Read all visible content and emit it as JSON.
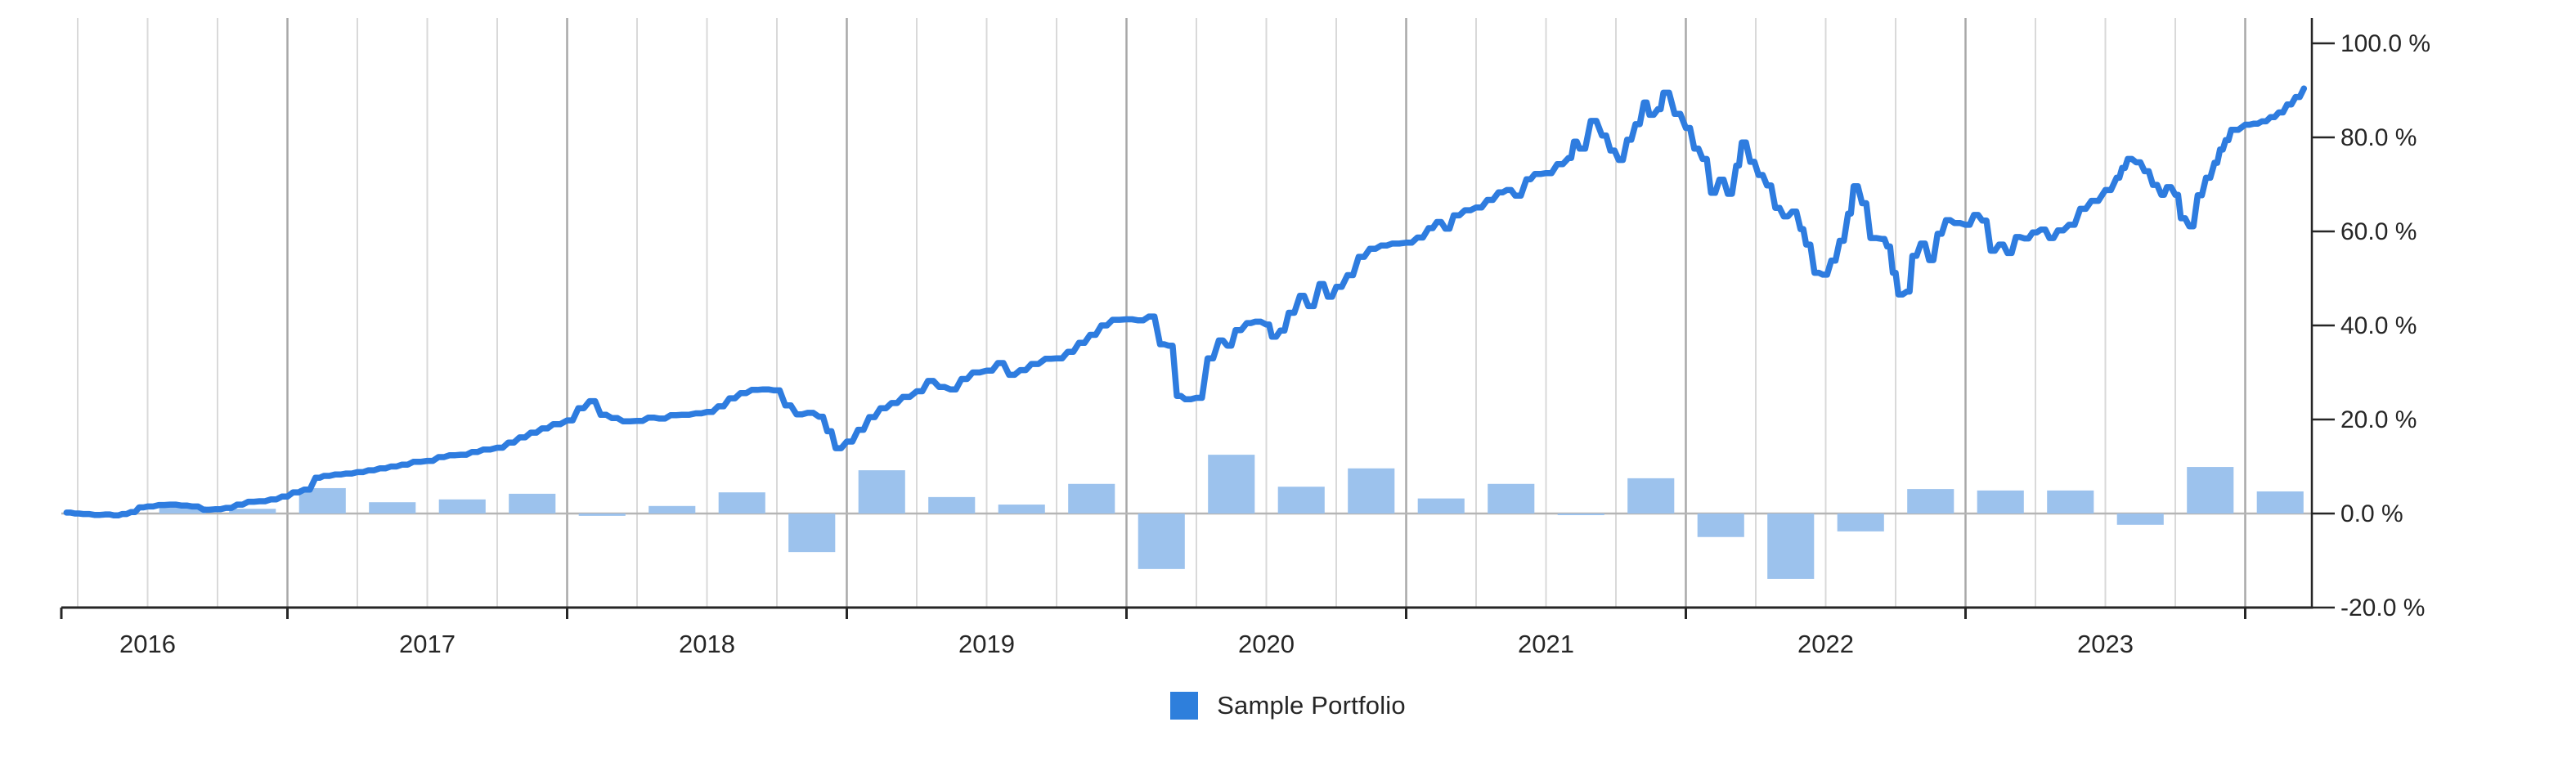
{
  "legend": {
    "label": "Sample Portfolio"
  },
  "colors": {
    "line": "#2e7cdf",
    "bar": "#9cc2ed",
    "legend_swatch": "#2e7fdc",
    "grid_minor": "#d9d9d9",
    "grid_major": "#a8a8a8",
    "zero_line": "#b5b5b5",
    "axis": "#262626",
    "text": "#262626"
  },
  "chart_data": {
    "type": "line+bar",
    "title": "",
    "legend_entries": [
      {
        "label": "Sample Portfolio",
        "color": "#2e7fdc"
      }
    ],
    "y_axis": {
      "side": "right",
      "range": [
        -20,
        100
      ],
      "ticks": [
        {
          "label": "100.0 %",
          "value": 100
        },
        {
          "label": "80.0 %",
          "value": 80
        },
        {
          "label": "60.0 %",
          "value": 60
        },
        {
          "label": "40.0 %",
          "value": 40
        },
        {
          "label": "20.0 %",
          "value": 20
        },
        {
          "label": "0.0 %",
          "value": 0
        },
        {
          "label": "-20.0 %",
          "value": -20
        }
      ]
    },
    "x_axis": {
      "range_decimal_years": [
        2016.19,
        2024.24
      ],
      "minor_grid": "quarterly",
      "major_boundaries": [
        2017,
        2018,
        2019,
        2020,
        2021,
        2022,
        2023,
        2024
      ],
      "year_labels": [
        {
          "label": "2016",
          "t": 2016.5
        },
        {
          "label": "2017",
          "t": 2017.5
        },
        {
          "label": "2018",
          "t": 2018.5
        },
        {
          "label": "2019",
          "t": 2019.5
        },
        {
          "label": "2020",
          "t": 2020.5
        },
        {
          "label": "2021",
          "t": 2021.5
        },
        {
          "label": "2022",
          "t": 2022.5
        },
        {
          "label": "2023",
          "t": 2023.5
        }
      ]
    },
    "series": [
      {
        "name": "Sample Portfolio (cumulative return)",
        "type": "line",
        "unit": "%",
        "points": [
          [
            2016.21,
            0.2
          ],
          [
            2016.24,
            0.0
          ],
          [
            2016.27,
            -0.1
          ],
          [
            2016.31,
            -0.3
          ],
          [
            2016.35,
            -0.2
          ],
          [
            2016.38,
            -0.4
          ],
          [
            2016.41,
            -0.1
          ],
          [
            2016.44,
            0.3
          ],
          [
            2016.47,
            1.3
          ],
          [
            2016.5,
            1.5
          ],
          [
            2016.54,
            1.8
          ],
          [
            2016.58,
            1.9
          ],
          [
            2016.62,
            1.7
          ],
          [
            2016.66,
            1.5
          ],
          [
            2016.7,
            0.8
          ],
          [
            2016.74,
            0.9
          ],
          [
            2016.78,
            1.2
          ],
          [
            2016.82,
            1.9
          ],
          [
            2016.86,
            2.5
          ],
          [
            2016.9,
            2.6
          ],
          [
            2016.94,
            3.0
          ],
          [
            2016.98,
            3.6
          ],
          [
            2017.02,
            4.5
          ],
          [
            2017.06,
            5.1
          ],
          [
            2017.1,
            7.6
          ],
          [
            2017.13,
            8.0
          ],
          [
            2017.17,
            8.3
          ],
          [
            2017.21,
            8.5
          ],
          [
            2017.25,
            8.8
          ],
          [
            2017.29,
            9.2
          ],
          [
            2017.33,
            9.6
          ],
          [
            2017.37,
            10.0
          ],
          [
            2017.41,
            10.4
          ],
          [
            2017.45,
            11.0
          ],
          [
            2017.5,
            11.2
          ],
          [
            2017.54,
            12.0
          ],
          [
            2017.58,
            12.4
          ],
          [
            2017.62,
            12.5
          ],
          [
            2017.66,
            13.1
          ],
          [
            2017.7,
            13.6
          ],
          [
            2017.75,
            14.0
          ],
          [
            2017.79,
            15.1
          ],
          [
            2017.83,
            16.2
          ],
          [
            2017.87,
            17.2
          ],
          [
            2017.91,
            18.1
          ],
          [
            2017.95,
            19.0
          ],
          [
            2018.0,
            19.8
          ],
          [
            2018.04,
            22.4
          ],
          [
            2018.08,
            23.9
          ],
          [
            2018.12,
            21.0
          ],
          [
            2018.16,
            20.3
          ],
          [
            2018.2,
            19.6
          ],
          [
            2018.25,
            19.7
          ],
          [
            2018.29,
            20.4
          ],
          [
            2018.33,
            20.2
          ],
          [
            2018.37,
            20.9
          ],
          [
            2018.41,
            21.0
          ],
          [
            2018.46,
            21.3
          ],
          [
            2018.5,
            21.6
          ],
          [
            2018.54,
            22.8
          ],
          [
            2018.58,
            24.5
          ],
          [
            2018.62,
            25.6
          ],
          [
            2018.66,
            26.3
          ],
          [
            2018.7,
            26.4
          ],
          [
            2018.74,
            26.2
          ],
          [
            2018.78,
            23.0
          ],
          [
            2018.82,
            21.1
          ],
          [
            2018.86,
            21.4
          ],
          [
            2018.9,
            20.6
          ],
          [
            2018.93,
            17.5
          ],
          [
            2018.96,
            13.9
          ],
          [
            2019.0,
            15.3
          ],
          [
            2019.04,
            17.8
          ],
          [
            2019.08,
            20.5
          ],
          [
            2019.12,
            22.4
          ],
          [
            2019.16,
            23.5
          ],
          [
            2019.2,
            24.8
          ],
          [
            2019.25,
            26.0
          ],
          [
            2019.29,
            28.2
          ],
          [
            2019.33,
            26.9
          ],
          [
            2019.37,
            26.4
          ],
          [
            2019.41,
            28.6
          ],
          [
            2019.45,
            30.0
          ],
          [
            2019.5,
            30.4
          ],
          [
            2019.54,
            32.0
          ],
          [
            2019.58,
            29.5
          ],
          [
            2019.62,
            30.5
          ],
          [
            2019.66,
            31.8
          ],
          [
            2019.71,
            32.9
          ],
          [
            2019.75,
            33.0
          ],
          [
            2019.79,
            34.4
          ],
          [
            2019.83,
            36.3
          ],
          [
            2019.87,
            38.0
          ],
          [
            2019.91,
            40.0
          ],
          [
            2019.95,
            41.2
          ],
          [
            2020.0,
            41.3
          ],
          [
            2020.04,
            41.1
          ],
          [
            2020.08,
            41.9
          ],
          [
            2020.12,
            36.0
          ],
          [
            2020.15,
            35.7
          ],
          [
            2020.18,
            25.0
          ],
          [
            2020.21,
            24.3
          ],
          [
            2020.25,
            24.6
          ],
          [
            2020.29,
            33.0
          ],
          [
            2020.33,
            36.8
          ],
          [
            2020.36,
            35.7
          ],
          [
            2020.39,
            39.0
          ],
          [
            2020.43,
            40.5
          ],
          [
            2020.46,
            40.8
          ],
          [
            2020.5,
            40.2
          ],
          [
            2020.52,
            37.6
          ],
          [
            2020.55,
            38.9
          ],
          [
            2020.58,
            42.7
          ],
          [
            2020.62,
            46.3
          ],
          [
            2020.65,
            44.1
          ],
          [
            2020.69,
            48.8
          ],
          [
            2020.72,
            46.1
          ],
          [
            2020.75,
            48.2
          ],
          [
            2020.79,
            50.7
          ],
          [
            2020.83,
            54.6
          ],
          [
            2020.87,
            56.3
          ],
          [
            2020.91,
            57.0
          ],
          [
            2020.95,
            57.4
          ],
          [
            2021.0,
            57.6
          ],
          [
            2021.04,
            58.7
          ],
          [
            2021.08,
            60.7
          ],
          [
            2021.11,
            62.0
          ],
          [
            2021.14,
            60.6
          ],
          [
            2021.17,
            63.4
          ],
          [
            2021.21,
            64.5
          ],
          [
            2021.25,
            65.1
          ],
          [
            2021.29,
            66.7
          ],
          [
            2021.33,
            68.3
          ],
          [
            2021.36,
            68.8
          ],
          [
            2021.39,
            67.6
          ],
          [
            2021.43,
            71.1
          ],
          [
            2021.46,
            72.2
          ],
          [
            2021.5,
            72.4
          ],
          [
            2021.54,
            74.3
          ],
          [
            2021.58,
            75.6
          ],
          [
            2021.6,
            79.1
          ],
          [
            2021.62,
            77.6
          ],
          [
            2021.66,
            83.5
          ],
          [
            2021.7,
            80.4
          ],
          [
            2021.73,
            77.2
          ],
          [
            2021.76,
            75.2
          ],
          [
            2021.79,
            79.5
          ],
          [
            2021.82,
            82.8
          ],
          [
            2021.85,
            87.4
          ],
          [
            2021.87,
            84.8
          ],
          [
            2021.9,
            86.0
          ],
          [
            2021.92,
            89.5
          ],
          [
            2021.96,
            85.0
          ],
          [
            2022.0,
            82.0
          ],
          [
            2022.03,
            77.6
          ],
          [
            2022.06,
            75.4
          ],
          [
            2022.09,
            68.2
          ],
          [
            2022.12,
            71.0
          ],
          [
            2022.15,
            68.0
          ],
          [
            2022.18,
            74.0
          ],
          [
            2022.2,
            78.9
          ],
          [
            2022.23,
            74.8
          ],
          [
            2022.26,
            72.0
          ],
          [
            2022.29,
            69.8
          ],
          [
            2022.32,
            65.0
          ],
          [
            2022.35,
            63.2
          ],
          [
            2022.38,
            64.2
          ],
          [
            2022.41,
            60.5
          ],
          [
            2022.43,
            57.2
          ],
          [
            2022.46,
            51.2
          ],
          [
            2022.49,
            50.8
          ],
          [
            2022.52,
            53.8
          ],
          [
            2022.55,
            58.0
          ],
          [
            2022.58,
            63.8
          ],
          [
            2022.6,
            69.6
          ],
          [
            2022.63,
            66.0
          ],
          [
            2022.66,
            58.6
          ],
          [
            2022.7,
            58.4
          ],
          [
            2022.72,
            56.8
          ],
          [
            2022.74,
            51.2
          ],
          [
            2022.76,
            46.6
          ],
          [
            2022.79,
            47.2
          ],
          [
            2022.81,
            54.8
          ],
          [
            2022.84,
            57.4
          ],
          [
            2022.87,
            53.9
          ],
          [
            2022.9,
            59.5
          ],
          [
            2022.93,
            62.4
          ],
          [
            2022.96,
            61.8
          ],
          [
            2023.0,
            61.4
          ],
          [
            2023.03,
            63.5
          ],
          [
            2023.06,
            62.3
          ],
          [
            2023.09,
            55.9
          ],
          [
            2023.12,
            57.2
          ],
          [
            2023.15,
            55.4
          ],
          [
            2023.18,
            58.8
          ],
          [
            2023.21,
            58.5
          ],
          [
            2023.24,
            59.8
          ],
          [
            2023.27,
            60.4
          ],
          [
            2023.3,
            58.6
          ],
          [
            2023.33,
            60.2
          ],
          [
            2023.37,
            61.4
          ],
          [
            2023.41,
            64.8
          ],
          [
            2023.45,
            66.5
          ],
          [
            2023.5,
            68.8
          ],
          [
            2023.54,
            71.4
          ],
          [
            2023.56,
            73.5
          ],
          [
            2023.58,
            75.4
          ],
          [
            2023.61,
            74.7
          ],
          [
            2023.64,
            72.8
          ],
          [
            2023.67,
            69.9
          ],
          [
            2023.7,
            67.8
          ],
          [
            2023.72,
            69.4
          ],
          [
            2023.75,
            67.8
          ],
          [
            2023.77,
            62.8
          ],
          [
            2023.8,
            61.1
          ],
          [
            2023.83,
            67.7
          ],
          [
            2023.86,
            71.4
          ],
          [
            2023.89,
            74.6
          ],
          [
            2023.91,
            77.4
          ],
          [
            2023.93,
            79.4
          ],
          [
            2023.95,
            81.6
          ],
          [
            2024.0,
            82.7
          ],
          [
            2024.03,
            82.9
          ],
          [
            2024.06,
            83.4
          ],
          [
            2024.09,
            84.3
          ],
          [
            2024.12,
            85.3
          ],
          [
            2024.15,
            87.0
          ],
          [
            2024.18,
            88.6
          ],
          [
            2024.21,
            90.4
          ]
        ]
      },
      {
        "name": "Sample Portfolio (quarterly return bars)",
        "type": "bar",
        "unit": "%",
        "quarter_width_years": 0.25,
        "points": [
          [
            2016.5,
            1.5
          ],
          [
            2016.75,
            1.0
          ],
          [
            2017.0,
            5.4
          ],
          [
            2017.25,
            2.4
          ],
          [
            2017.5,
            3.0
          ],
          [
            2017.75,
            4.2
          ],
          [
            2018.0,
            -0.5
          ],
          [
            2018.25,
            1.6
          ],
          [
            2018.5,
            4.5
          ],
          [
            2018.75,
            -8.2
          ],
          [
            2019.0,
            9.2
          ],
          [
            2019.25,
            3.5
          ],
          [
            2019.5,
            1.9
          ],
          [
            2019.75,
            6.3
          ],
          [
            2020.0,
            -11.8
          ],
          [
            2020.25,
            12.5
          ],
          [
            2020.5,
            5.7
          ],
          [
            2020.75,
            9.6
          ],
          [
            2021.0,
            3.2
          ],
          [
            2021.25,
            6.3
          ],
          [
            2021.5,
            -0.3
          ],
          [
            2021.75,
            7.5
          ],
          [
            2022.0,
            -5.0
          ],
          [
            2022.25,
            -13.9
          ],
          [
            2022.5,
            -3.8
          ],
          [
            2022.75,
            5.2
          ],
          [
            2023.0,
            4.9
          ],
          [
            2023.25,
            4.9
          ],
          [
            2023.5,
            -2.4
          ],
          [
            2023.75,
            9.9
          ],
          [
            2024.0,
            4.7
          ]
        ]
      }
    ]
  }
}
